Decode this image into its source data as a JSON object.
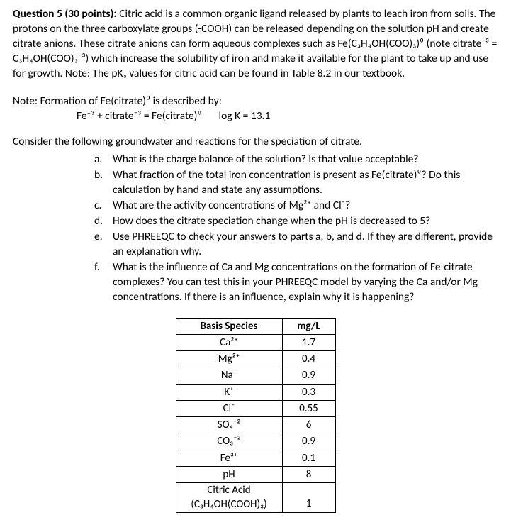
{
  "intro": {
    "heading": "Question 5 (30 points): ",
    "body": "Citric acid is a common organic ligand released by plants to leach iron from soils. The protons on the three carboxylate groups (-COOH) can be released depending on the solution pH and create citrate anions. These citrate anions can form aqueous complexes such as Fe(C₃H₄OH(COO)₃)⁰ (note citrate⁻³ = C₃H₄OH(COO)₃⁻³) which increase the solubility of iron and make it available for the plant to take up and use for growth. Note: The pKₐ values for citric acid can be found in Table 8.2 in our textbook."
  },
  "note": {
    "line1": "Note: Formation of Fe(citrate)⁰ is described by:",
    "line2a": "Fe⁺³ + citrate⁻³ = Fe(citrate)⁰",
    "line2b": "log K = 13.1"
  },
  "consider": "Consider the following groundwater and reactions for the speciation of citrate.",
  "parts": [
    {
      "letter": "a.",
      "text": "What is the charge balance of the solution? Is that value acceptable?"
    },
    {
      "letter": "b.",
      "text": "What fraction of the total iron concentration is present as Fe(citrate)⁰? Do this calculation by hand and state any assumptions."
    },
    {
      "letter": "c.",
      "text": "What are the activity concentrations of Mg²⁺ and Cl⁻?"
    },
    {
      "letter": "d.",
      "text": "How does the citrate speciation change when the pH is decreased to 5?"
    },
    {
      "letter": "e.",
      "text": "Use PHREEQC to check your answers to parts a, b, and d. If they are different, provide an explanation why."
    },
    {
      "letter": "f.",
      "text": "What is the influence of Ca and Mg concentrations on the formation of Fe-citrate complexes? You can test this in your PHREEQC model by varying the Ca and/or Mg concentrations. If there is an influence, explain why it is happening?"
    }
  ],
  "table": {
    "header": [
      "Basis Species",
      "mg/L"
    ],
    "rows": [
      [
        "Ca²⁺",
        "1.7"
      ],
      [
        "Mg²⁺",
        "0.4"
      ],
      [
        "Na⁺",
        "0.9"
      ],
      [
        "K⁺",
        "0.3"
      ],
      [
        "Cl⁻",
        "0.55"
      ],
      [
        "SO₄⁻²",
        "6"
      ],
      [
        "CO₃⁻²",
        "0.9"
      ],
      [
        "Fe³⁺",
        "0.1"
      ],
      [
        "pH",
        "8"
      ],
      [
        "Citric Acid (C₃H₄OH(COOH)₃)",
        "1"
      ]
    ],
    "citric_line1": "Citric Acid",
    "citric_line2": "(C₃H₄OH(COOH)₃)",
    "citric_val": "1"
  },
  "colors": {
    "text": "#000000",
    "bg": "#ffffff",
    "border": "#000000"
  }
}
